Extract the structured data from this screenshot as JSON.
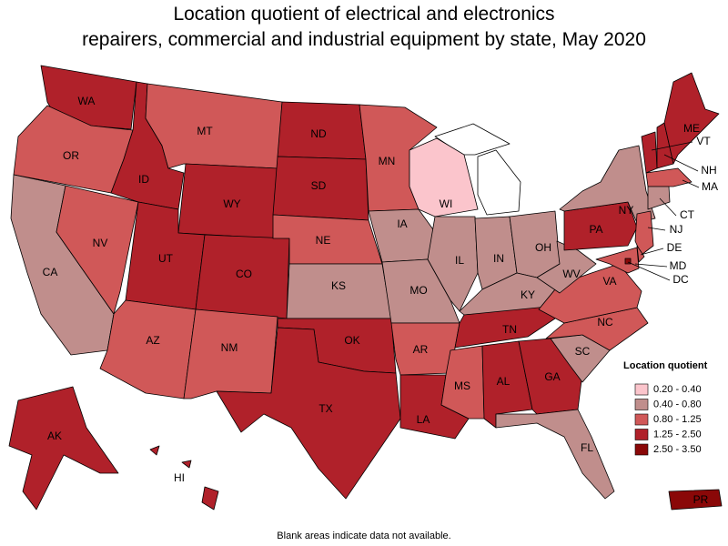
{
  "title_lines": [
    "Location quotient of electrical and electronics",
    "repairers, commercial and industrial equipment by state, May 2020"
  ],
  "legend": {
    "title": "Location quotient",
    "classes": [
      {
        "label": "0.20 - 0.40",
        "color": "#fbc5cc"
      },
      {
        "label": "0.40 - 0.80",
        "color": "#c08e8c"
      },
      {
        "label": "0.80 - 1.25",
        "color": "#d05858"
      },
      {
        "label": "1.25 - 2.50",
        "color": "#b0212a"
      },
      {
        "label": "2.50 - 3.50",
        "color": "#8a0808"
      }
    ]
  },
  "states": [
    {
      "abbr": "WA",
      "class": 3
    },
    {
      "abbr": "OR",
      "class": 2
    },
    {
      "abbr": "CA",
      "class": 1
    },
    {
      "abbr": "NV",
      "class": 2
    },
    {
      "abbr": "ID",
      "class": 3
    },
    {
      "abbr": "MT",
      "class": 2
    },
    {
      "abbr": "WY",
      "class": 3
    },
    {
      "abbr": "UT",
      "class": 3
    },
    {
      "abbr": "CO",
      "class": 3
    },
    {
      "abbr": "AZ",
      "class": 2
    },
    {
      "abbr": "NM",
      "class": 2
    },
    {
      "abbr": "ND",
      "class": 3
    },
    {
      "abbr": "SD",
      "class": 3
    },
    {
      "abbr": "NE",
      "class": 2
    },
    {
      "abbr": "KS",
      "class": 1
    },
    {
      "abbr": "OK",
      "class": 3
    },
    {
      "abbr": "TX",
      "class": 3
    },
    {
      "abbr": "MN",
      "class": 2
    },
    {
      "abbr": "IA",
      "class": 1
    },
    {
      "abbr": "MO",
      "class": 1
    },
    {
      "abbr": "AR",
      "class": 2
    },
    {
      "abbr": "LA",
      "class": 3
    },
    {
      "abbr": "WI",
      "class": 0
    },
    {
      "abbr": "IL",
      "class": 1
    },
    {
      "abbr": "IN",
      "class": 1
    },
    {
      "abbr": "OH",
      "class": 1
    },
    {
      "abbr": "KY",
      "class": 1
    },
    {
      "abbr": "TN",
      "class": 3
    },
    {
      "abbr": "MS",
      "class": 2
    },
    {
      "abbr": "AL",
      "class": 3
    },
    {
      "abbr": "GA",
      "class": 3
    },
    {
      "abbr": "FL",
      "class": 1
    },
    {
      "abbr": "SC",
      "class": 1
    },
    {
      "abbr": "NC",
      "class": 2
    },
    {
      "abbr": "VA",
      "class": 2
    },
    {
      "abbr": "WV",
      "class": 1
    },
    {
      "abbr": "PA",
      "class": 3
    },
    {
      "abbr": "NY",
      "class": 1
    },
    {
      "abbr": "VT",
      "class": 3
    },
    {
      "abbr": "NH",
      "class": 3
    },
    {
      "abbr": "ME",
      "class": 3
    },
    {
      "abbr": "MA",
      "class": 2
    },
    {
      "abbr": "CT",
      "class": 1
    },
    {
      "abbr": "NJ",
      "class": 2
    },
    {
      "abbr": "DE",
      "class": 2
    },
    {
      "abbr": "MD",
      "class": 2
    },
    {
      "abbr": "DC",
      "class": 4
    },
    {
      "abbr": "AK",
      "class": 3
    },
    {
      "abbr": "HI",
      "class": 3
    },
    {
      "abbr": "PR",
      "class": 4
    }
  ],
  "footnote": "Blank areas indicate data not available."
}
